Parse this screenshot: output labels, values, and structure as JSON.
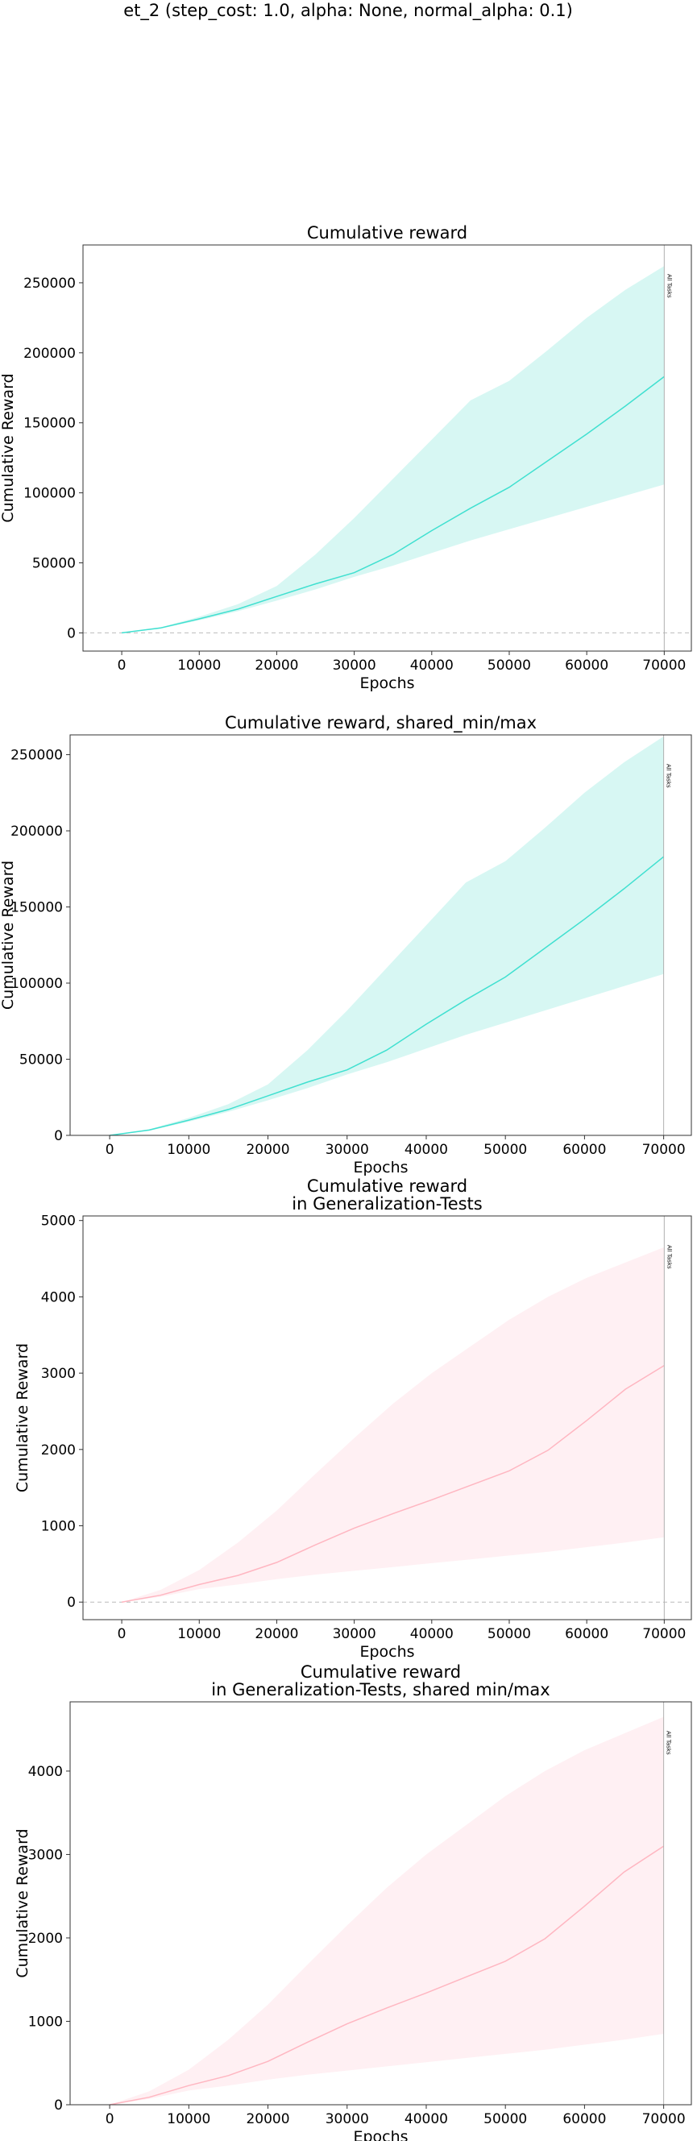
{
  "figure": {
    "suptitle": "et_2 (step_cost: 1.0, alpha: None, normal_alpha: 0.1)"
  },
  "chart_data": [
    {
      "type": "line",
      "title": [
        "Cumulative reward"
      ],
      "xlabel": "Epochs",
      "ylabel": "Cumulative Reward",
      "xlim": [
        -5000,
        73500
      ],
      "ylim": [
        -13000,
        277000
      ],
      "xticks": [
        0,
        10000,
        20000,
        30000,
        40000,
        50000,
        60000,
        70000
      ],
      "yticks": [
        0,
        50000,
        100000,
        150000,
        200000,
        250000
      ],
      "zero_line": true,
      "color": "#40e0d0",
      "band_color": "#d7f7f3",
      "vline": {
        "x": 70000,
        "label": "All Tasks"
      },
      "series": [
        {
          "x": [
            0,
            5000,
            10000,
            15000,
            20000,
            25000,
            30000,
            35000,
            40000,
            45000,
            50000,
            55000,
            60000,
            65000,
            70000
          ],
          "mean": [
            0,
            3500,
            10000,
            17000,
            26000,
            35000,
            43000,
            56000,
            73000,
            89000,
            104000,
            123000,
            142000,
            162000,
            183000
          ],
          "min": [
            0,
            3000,
            9000,
            15500,
            23000,
            31000,
            40000,
            48000,
            57000,
            66000,
            74000,
            82000,
            90000,
            98000,
            106000
          ],
          "max": [
            0,
            4000,
            11500,
            20500,
            33500,
            56000,
            82000,
            110000,
            138000,
            166000,
            180000,
            202000,
            225000,
            245000,
            262000
          ]
        }
      ]
    },
    {
      "type": "line",
      "title": [
        "Cumulative reward, shared_min/max"
      ],
      "xlabel": "Epochs",
      "ylabel": "Cumulative Reward",
      "xlim": [
        -5000,
        73500
      ],
      "ylim": [
        0,
        263000
      ],
      "xticks": [
        0,
        10000,
        20000,
        30000,
        40000,
        50000,
        60000,
        70000
      ],
      "yticks": [
        0,
        50000,
        100000,
        150000,
        200000,
        250000
      ],
      "zero_line": false,
      "color": "#40e0d0",
      "band_color": "#d7f7f3",
      "vline": {
        "x": 70000,
        "label": "All Tasks"
      },
      "series": [
        {
          "x": [
            0,
            5000,
            10000,
            15000,
            20000,
            25000,
            30000,
            35000,
            40000,
            45000,
            50000,
            55000,
            60000,
            65000,
            70000
          ],
          "mean": [
            0,
            3500,
            10000,
            17000,
            26000,
            35000,
            43000,
            56000,
            73000,
            89000,
            104000,
            123000,
            142000,
            162000,
            183000
          ],
          "min": [
            0,
            3000,
            9000,
            15500,
            23000,
            31000,
            40000,
            48000,
            57000,
            66000,
            74000,
            82000,
            90000,
            98000,
            106000
          ],
          "max": [
            0,
            4000,
            11500,
            20500,
            33500,
            56000,
            82000,
            110000,
            138000,
            166000,
            180000,
            202000,
            225000,
            245000,
            262000
          ]
        }
      ]
    },
    {
      "type": "line",
      "title": [
        "Cumulative reward",
        "in Generalization-Tests"
      ],
      "xlabel": "Epochs",
      "ylabel": "Cumulative Reward",
      "xlim": [
        -5000,
        73500
      ],
      "ylim": [
        -230,
        5060
      ],
      "xticks": [
        0,
        10000,
        20000,
        30000,
        40000,
        50000,
        60000,
        70000
      ],
      "yticks": [
        0,
        1000,
        2000,
        3000,
        4000,
        5000
      ],
      "zero_line": true,
      "color": "#ffb6c1",
      "band_color": "#fff0f3",
      "vline": {
        "x": 70000,
        "label": "All Tasks"
      },
      "series": [
        {
          "x": [
            0,
            5000,
            10000,
            15000,
            20000,
            25000,
            30000,
            35000,
            40000,
            45000,
            50000,
            55000,
            60000,
            65000,
            70000
          ],
          "mean": [
            0,
            90,
            230,
            350,
            520,
            750,
            970,
            1160,
            1340,
            1530,
            1720,
            1990,
            2380,
            2790,
            3100
          ],
          "min": [
            0,
            70,
            170,
            230,
            300,
            360,
            410,
            460,
            510,
            560,
            610,
            660,
            720,
            780,
            850
          ],
          "max": [
            0,
            160,
            420,
            780,
            1200,
            1680,
            2150,
            2600,
            3000,
            3350,
            3700,
            4000,
            4250,
            4450,
            4650
          ]
        }
      ]
    },
    {
      "type": "line",
      "title": [
        "Cumulative reward",
        "in Generalization-Tests, shared min/max"
      ],
      "xlabel": "Epochs",
      "ylabel": "Cumulative Reward",
      "xlim": [
        -5000,
        73500
      ],
      "ylim": [
        0,
        4830
      ],
      "xticks": [
        0,
        10000,
        20000,
        30000,
        40000,
        50000,
        60000,
        70000
      ],
      "yticks": [
        0,
        1000,
        2000,
        3000,
        4000
      ],
      "zero_line": false,
      "color": "#ffb6c1",
      "band_color": "#fff0f3",
      "vline": {
        "x": 70000,
        "label": "All Tasks"
      },
      "series": [
        {
          "x": [
            0,
            5000,
            10000,
            15000,
            20000,
            25000,
            30000,
            35000,
            40000,
            45000,
            50000,
            55000,
            60000,
            65000,
            70000
          ],
          "mean": [
            0,
            90,
            230,
            350,
            520,
            750,
            970,
            1160,
            1340,
            1530,
            1720,
            1990,
            2380,
            2790,
            3100
          ],
          "min": [
            0,
            70,
            170,
            230,
            300,
            360,
            410,
            460,
            510,
            560,
            610,
            660,
            720,
            780,
            850
          ],
          "max": [
            0,
            160,
            420,
            780,
            1200,
            1680,
            2150,
            2600,
            3000,
            3350,
            3700,
            4000,
            4250,
            4450,
            4650
          ]
        }
      ]
    }
  ]
}
